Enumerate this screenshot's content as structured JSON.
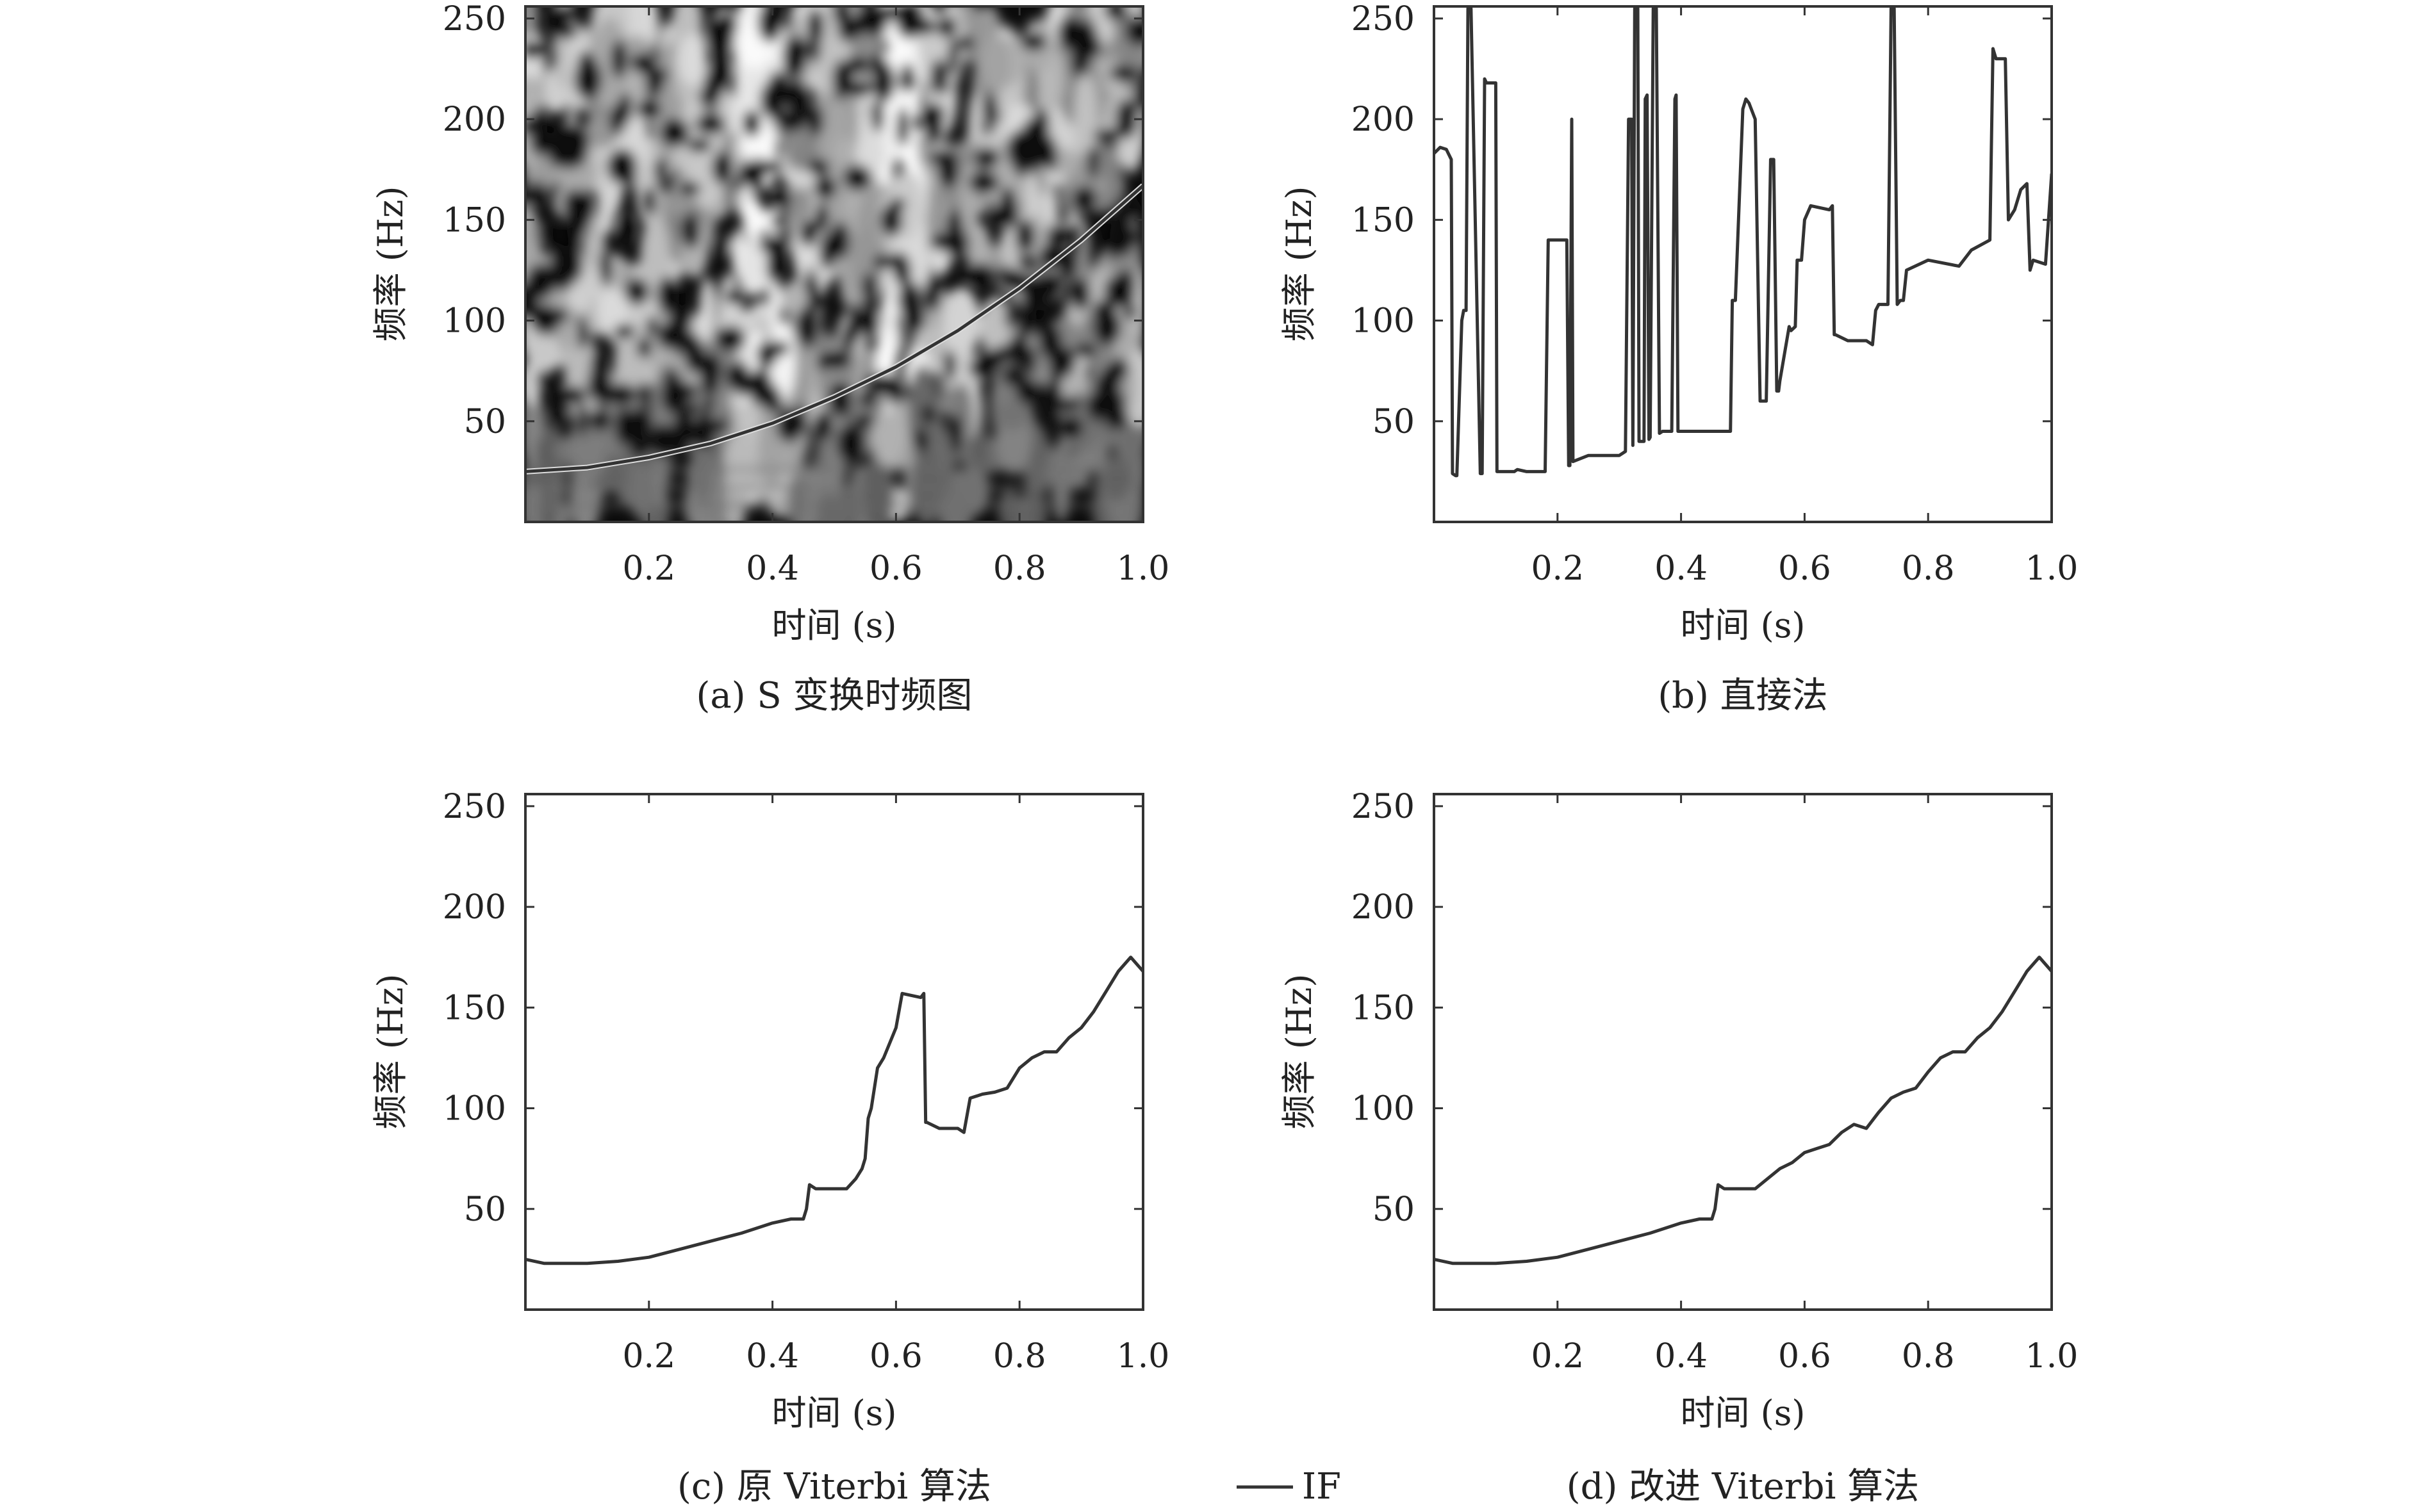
{
  "chart_data": [
    {
      "id": "a",
      "type": "heatmap",
      "caption": "(a) S 变换时频图",
      "xlabel": "时间 (s)",
      "ylabel": "频率 (Hz)",
      "xlim": [
        0,
        1.0
      ],
      "ylim": [
        0,
        256
      ],
      "xticks": [
        "0.2",
        "0.4",
        "0.6",
        "0.8",
        "1.0"
      ],
      "yticks": [
        "50",
        "100",
        "150",
        "200",
        "250"
      ],
      "colormap": "grayscale",
      "overlay": {
        "name": "IF",
        "x": [
          0.0,
          0.1,
          0.2,
          0.3,
          0.4,
          0.5,
          0.6,
          0.7,
          0.8,
          0.9,
          1.0
        ],
        "y": [
          25,
          27,
          32,
          39,
          49,
          62,
          77,
          95,
          116,
          140,
          167
        ]
      }
    },
    {
      "id": "b",
      "type": "line",
      "caption": "(b) 直接法",
      "xlabel": "时间 (s)",
      "ylabel": "频率 (Hz)",
      "xlim": [
        0,
        1.0
      ],
      "ylim": [
        0,
        256
      ],
      "xticks": [
        "0.2",
        "0.4",
        "0.6",
        "0.8",
        "1.0"
      ],
      "yticks": [
        "50",
        "100",
        "150",
        "200",
        "250"
      ],
      "x": [
        0.0,
        0.01,
        0.02,
        0.028,
        0.03,
        0.035,
        0.037,
        0.045,
        0.048,
        0.052,
        0.055,
        0.06,
        0.075,
        0.078,
        0.082,
        0.085,
        0.1,
        0.102,
        0.13,
        0.135,
        0.15,
        0.18,
        0.185,
        0.215,
        0.218,
        0.22,
        0.223,
        0.225,
        0.25,
        0.3,
        0.31,
        0.315,
        0.32,
        0.322,
        0.325,
        0.33,
        0.332,
        0.34,
        0.342,
        0.345,
        0.348,
        0.35,
        0.355,
        0.36,
        0.365,
        0.37,
        0.385,
        0.39,
        0.392,
        0.395,
        0.4,
        0.48,
        0.483,
        0.488,
        0.5,
        0.505,
        0.51,
        0.52,
        0.528,
        0.53,
        0.535,
        0.538,
        0.545,
        0.55,
        0.555,
        0.558,
        0.56,
        0.575,
        0.578,
        0.585,
        0.588,
        0.595,
        0.6,
        0.61,
        0.64,
        0.645,
        0.648,
        0.65,
        0.67,
        0.7,
        0.71,
        0.715,
        0.72,
        0.735,
        0.74,
        0.745,
        0.75,
        0.755,
        0.76,
        0.765,
        0.8,
        0.85,
        0.87,
        0.9,
        0.905,
        0.91,
        0.925,
        0.93,
        0.94,
        0.95,
        0.96,
        0.965,
        0.97,
        0.99,
        1.0
      ],
      "y": [
        183,
        186,
        185,
        180,
        24,
        23,
        23,
        100,
        105,
        105,
        255,
        255,
        24,
        24,
        220,
        218,
        218,
        25,
        25,
        26,
        25,
        25,
        140,
        140,
        28,
        28,
        200,
        30,
        33,
        33,
        35,
        200,
        200,
        38,
        255,
        255,
        40,
        40,
        210,
        212,
        41,
        42,
        255,
        255,
        44,
        45,
        45,
        210,
        212,
        45,
        45,
        45,
        110,
        110,
        205,
        210,
        208,
        200,
        60,
        60,
        60,
        60,
        180,
        180,
        65,
        65,
        70,
        97,
        95,
        97,
        130,
        130,
        150,
        157,
        155,
        157,
        93,
        93,
        90,
        90,
        88,
        105,
        108,
        108,
        255,
        255,
        108,
        110,
        110,
        125,
        130,
        127,
        135,
        140,
        235,
        230,
        230,
        150,
        155,
        165,
        168,
        125,
        130,
        128,
        173
      ]
    },
    {
      "id": "c",
      "type": "line",
      "caption": "(c) 原 Viterbi 算法",
      "xlabel": "时间 (s)",
      "ylabel": "频率 (Hz)",
      "xlim": [
        0,
        1.0
      ],
      "ylim": [
        0,
        256
      ],
      "xticks": [
        "0.2",
        "0.4",
        "0.6",
        "0.8",
        "1.0"
      ],
      "yticks": [
        "50",
        "100",
        "150",
        "200",
        "250"
      ],
      "x": [
        0.0,
        0.03,
        0.05,
        0.1,
        0.15,
        0.2,
        0.25,
        0.3,
        0.35,
        0.4,
        0.43,
        0.45,
        0.455,
        0.46,
        0.47,
        0.5,
        0.52,
        0.535,
        0.545,
        0.55,
        0.555,
        0.56,
        0.57,
        0.58,
        0.6,
        0.61,
        0.64,
        0.645,
        0.648,
        0.65,
        0.67,
        0.7,
        0.71,
        0.72,
        0.74,
        0.76,
        0.78,
        0.8,
        0.82,
        0.84,
        0.86,
        0.88,
        0.9,
        0.92,
        0.94,
        0.96,
        0.98,
        1.0
      ],
      "y": [
        25,
        23,
        23,
        23,
        24,
        26,
        30,
        34,
        38,
        43,
        45,
        45,
        50,
        62,
        60,
        60,
        60,
        65,
        70,
        75,
        95,
        100,
        120,
        125,
        140,
        157,
        155,
        157,
        93,
        93,
        90,
        90,
        88,
        105,
        107,
        108,
        110,
        120,
        125,
        128,
        128,
        135,
        140,
        148,
        158,
        168,
        175,
        168
      ]
    },
    {
      "id": "d",
      "type": "line",
      "caption": "(d) 改进 Viterbi 算法",
      "xlabel": "时间 (s)",
      "ylabel": "频率 (Hz)",
      "xlim": [
        0,
        1.0
      ],
      "ylim": [
        0,
        256
      ],
      "xticks": [
        "0.2",
        "0.4",
        "0.6",
        "0.8",
        "1.0"
      ],
      "yticks": [
        "50",
        "100",
        "150",
        "200",
        "250"
      ],
      "x": [
        0.0,
        0.03,
        0.05,
        0.1,
        0.15,
        0.2,
        0.25,
        0.3,
        0.35,
        0.4,
        0.43,
        0.45,
        0.455,
        0.46,
        0.47,
        0.5,
        0.52,
        0.54,
        0.56,
        0.58,
        0.6,
        0.62,
        0.64,
        0.66,
        0.68,
        0.7,
        0.72,
        0.74,
        0.76,
        0.78,
        0.8,
        0.82,
        0.84,
        0.86,
        0.88,
        0.9,
        0.92,
        0.94,
        0.96,
        0.98,
        1.0
      ],
      "y": [
        25,
        23,
        23,
        23,
        24,
        26,
        30,
        34,
        38,
        43,
        45,
        45,
        50,
        62,
        60,
        60,
        60,
        65,
        70,
        73,
        78,
        80,
        82,
        88,
        92,
        90,
        98,
        105,
        108,
        110,
        118,
        125,
        128,
        128,
        135,
        140,
        148,
        158,
        168,
        175,
        168
      ]
    }
  ],
  "legend": {
    "label": "IF"
  }
}
